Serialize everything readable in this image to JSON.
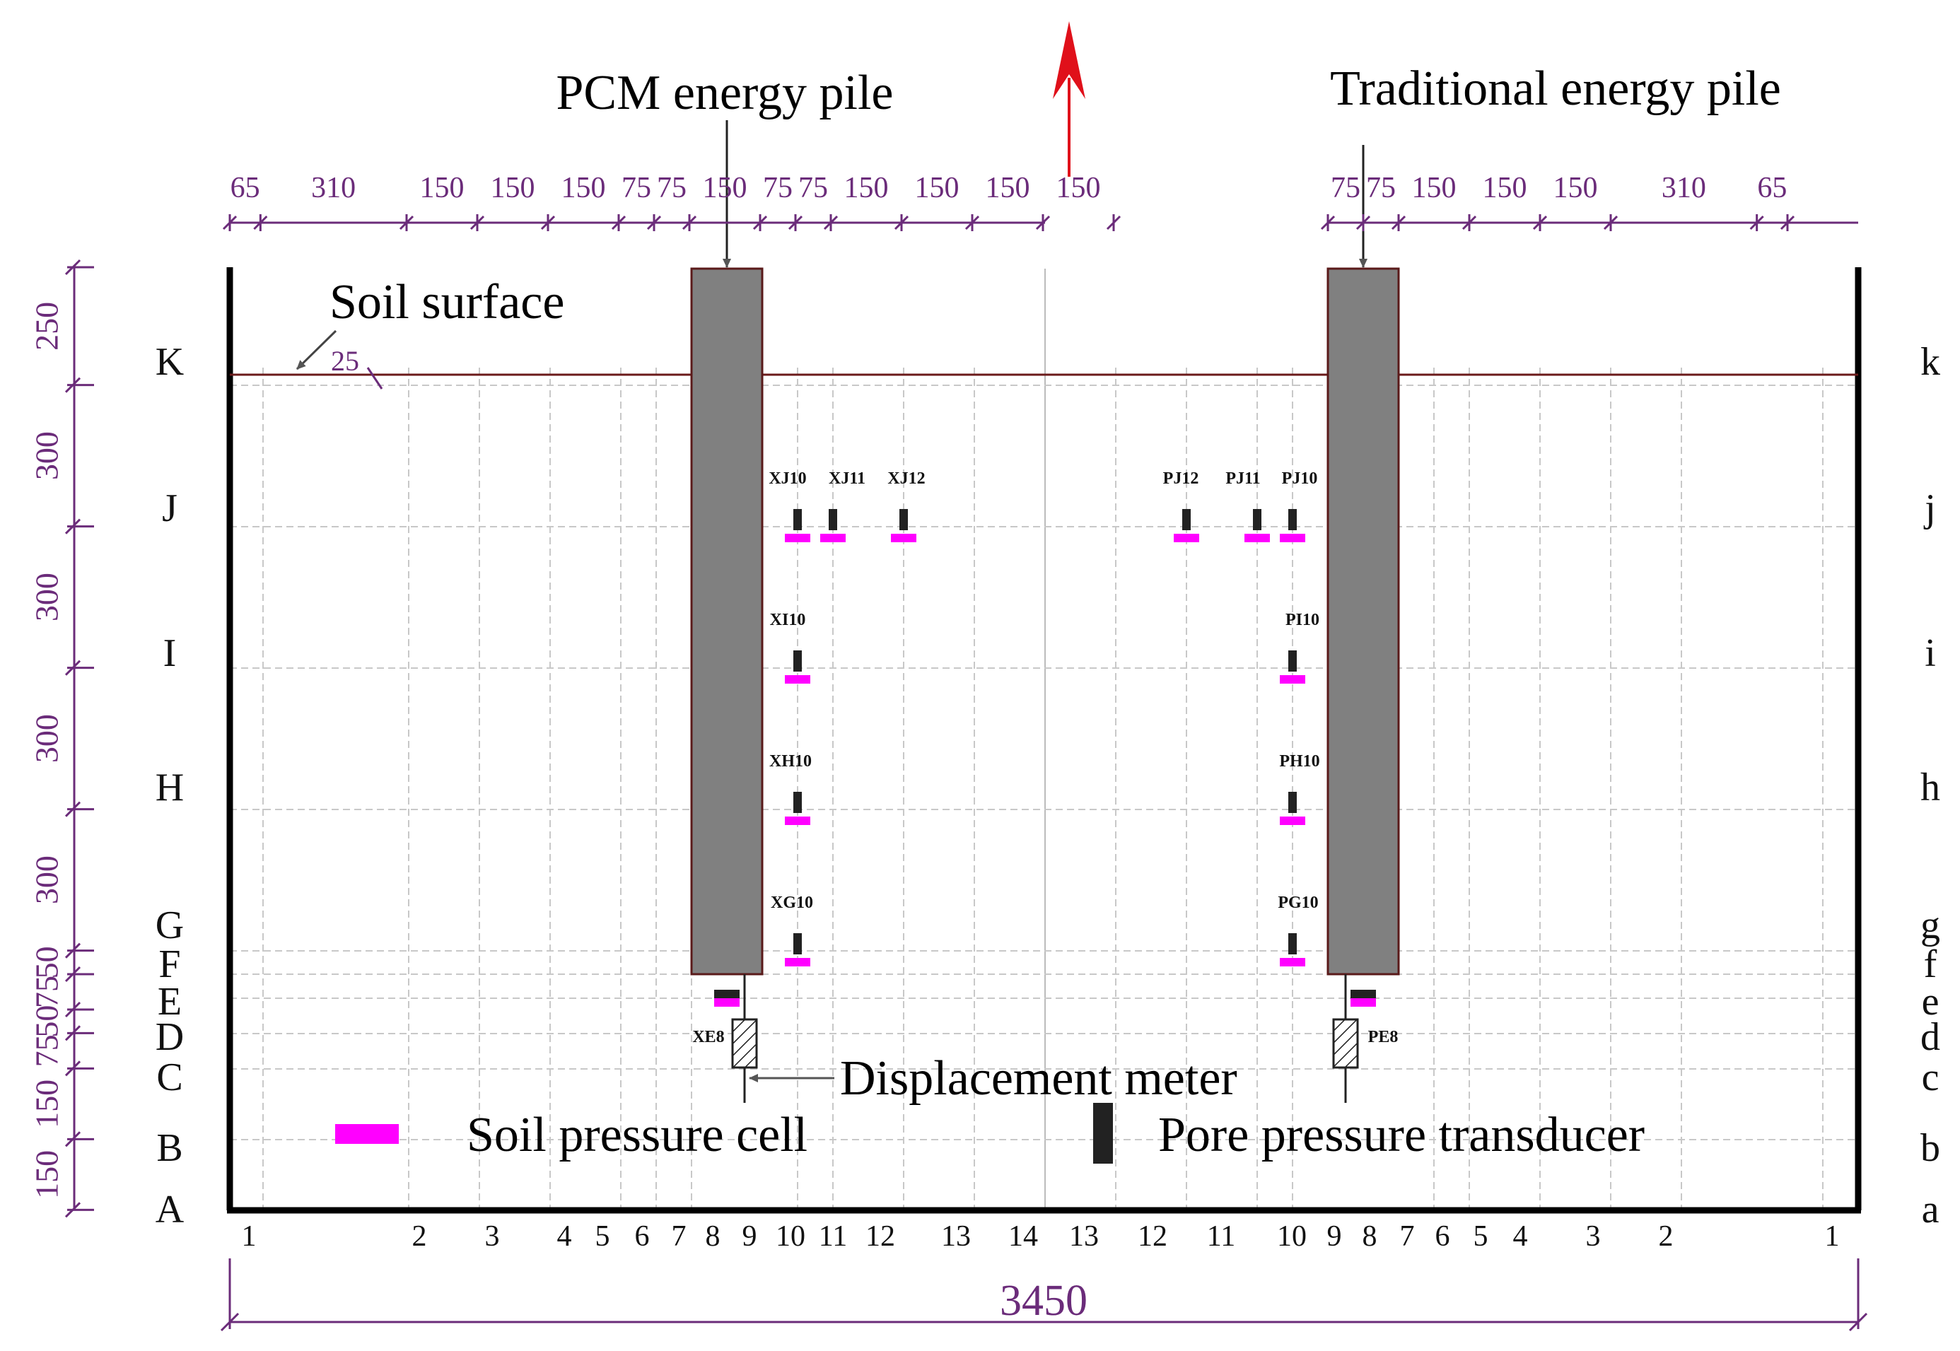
{
  "title_left": "PCM energy pile",
  "title_right": "Traditional  energy pile",
  "soil_surface_label": "Soil surface",
  "soil_surface_offset": "25",
  "displacement_label": "Displacement meter",
  "legend": {
    "soil_pressure_cell": "Soil pressure cell",
    "pore_pressure_transducer": "Pore pressure transducer"
  },
  "total_width_label": "3450",
  "top_dims": [
    "65",
    "310",
    "150",
    "150",
    "150",
    "75",
    "75",
    "150",
    "75",
    "75",
    "150",
    "150",
    "150",
    "150",
    "75",
    "75",
    "150",
    "150",
    "150",
    "310",
    "65"
  ],
  "left_dims": [
    "250",
    "300",
    "300",
    "300",
    "300",
    "50",
    "75",
    "50",
    "75",
    "150",
    "150"
  ],
  "row_labels_left": [
    "K",
    "J",
    "I",
    "H",
    "G",
    "F",
    "E",
    "D",
    "C",
    "B",
    "A"
  ],
  "row_labels_right": [
    "k",
    "j",
    "i",
    "h",
    "g",
    "f",
    "e",
    "d",
    "c",
    "b",
    "a"
  ],
  "col_labels": [
    "1",
    "2",
    "3",
    "4",
    "5",
    "6",
    "7",
    "8",
    "9",
    "10",
    "11",
    "12",
    "13",
    "14",
    "13",
    "12",
    "11",
    "10",
    "9",
    "8",
    "7",
    "6",
    "5",
    "4",
    "3",
    "2",
    "1"
  ],
  "sensor_labels": {
    "xj10": "XJ10",
    "xj11": "XJ11",
    "xj12": "XJ12",
    "pj12": "PJ12",
    "pj11": "PJ11",
    "pj10": "PJ10",
    "xi10": "XI10",
    "pi10": "PI10",
    "xh10": "XH10",
    "ph10": "PH10",
    "xg10": "XG10",
    "pg10": "PG10",
    "xe8": "XE8",
    "pe8": "PE8"
  },
  "colors": {
    "dimension": "#6b2c7a",
    "pile": "#808080",
    "soil_pressure_cell": "#ff00ff",
    "pore_transducer": "#222222",
    "north_arrow": "#e0101a",
    "soil_line": "#6b1a1a"
  }
}
